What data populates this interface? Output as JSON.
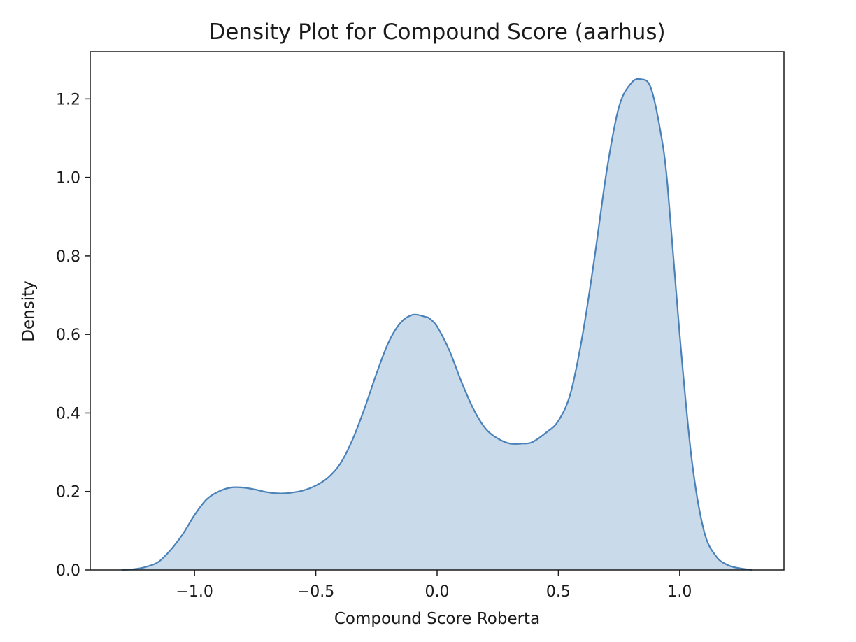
{
  "chart_data": {
    "type": "area",
    "title": "Density Plot for Compound Score (aarhus)",
    "xlabel": "Compound Score Roberta",
    "ylabel": "Density",
    "xlim": [
      -1.43,
      1.43
    ],
    "ylim": [
      0,
      1.32
    ],
    "xticks": [
      -1.0,
      -0.5,
      0.0,
      0.5,
      1.0
    ],
    "xtick_labels": [
      "−1.0",
      "−0.5",
      "0.0",
      "0.5",
      "1.0"
    ],
    "yticks": [
      0.0,
      0.2,
      0.4,
      0.6,
      0.8,
      1.0,
      1.2
    ],
    "ytick_labels": [
      "0.0",
      "0.2",
      "0.4",
      "0.6",
      "0.8",
      "1.0",
      "1.2"
    ],
    "grid": false,
    "legend": "none",
    "colors": {
      "line": "#4a81b8",
      "fill": "#c9daea"
    },
    "series": [
      {
        "x": [
          -1.3,
          -1.25,
          -1.2,
          -1.15,
          -1.1,
          -1.05,
          -1.0,
          -0.95,
          -0.9,
          -0.85,
          -0.8,
          -0.75,
          -0.7,
          -0.65,
          -0.6,
          -0.55,
          -0.5,
          -0.45,
          -0.4,
          -0.35,
          -0.3,
          -0.25,
          -0.2,
          -0.15,
          -0.1,
          -0.05,
          -0.03,
          0.0,
          0.05,
          0.1,
          0.15,
          0.2,
          0.25,
          0.3,
          0.35,
          0.39,
          0.45,
          0.5,
          0.55,
          0.6,
          0.65,
          0.7,
          0.75,
          0.8,
          0.84,
          0.88,
          0.92,
          0.95,
          1.0,
          1.05,
          1.1,
          1.15,
          1.2,
          1.25,
          1.3
        ],
        "y": [
          0.0,
          0.002,
          0.008,
          0.02,
          0.05,
          0.09,
          0.14,
          0.18,
          0.2,
          0.21,
          0.21,
          0.205,
          0.198,
          0.195,
          0.197,
          0.203,
          0.215,
          0.235,
          0.27,
          0.33,
          0.41,
          0.5,
          0.58,
          0.63,
          0.65,
          0.645,
          0.64,
          0.62,
          0.56,
          0.48,
          0.41,
          0.36,
          0.335,
          0.322,
          0.322,
          0.325,
          0.35,
          0.38,
          0.45,
          0.6,
          0.8,
          1.02,
          1.18,
          1.24,
          1.25,
          1.23,
          1.12,
          0.98,
          0.6,
          0.28,
          0.1,
          0.035,
          0.012,
          0.004,
          0.0
        ]
      }
    ]
  }
}
